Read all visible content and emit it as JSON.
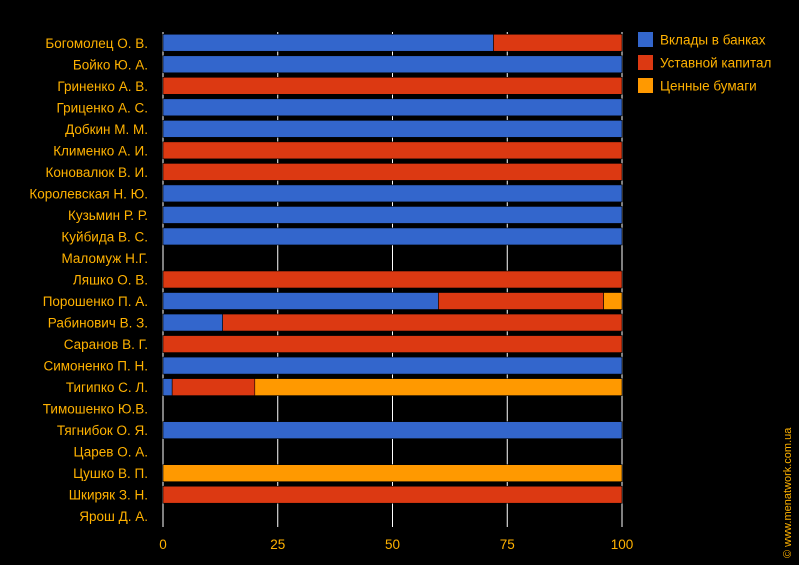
{
  "colors": {
    "background": "#000000",
    "text": "#FFB200",
    "gridline": "#ffffff"
  },
  "watermark": "© www.menatwork.com.ua",
  "chart_data": {
    "type": "bar",
    "orientation": "horizontal",
    "stacked": true,
    "xlim": [
      0,
      100
    ],
    "xticks": [
      0,
      25,
      50,
      75,
      100
    ],
    "grid": true,
    "legend_position": "top-right",
    "categories": [
      "Богомолец О. В.",
      "Бойко Ю. А.",
      "Гриненко А. В.",
      "Гриценко А. С.",
      "Добкин М. М.",
      "Клименко А. И.",
      "Коновалюк В. И.",
      "Королевская Н. Ю.",
      "Кузьмин Р. Р.",
      "Куйбида В. С.",
      "Маломуж Н.Г.",
      "Ляшко О. В.",
      "Порошенко П. А.",
      "Рабинович В. З.",
      "Саранов В. Г.",
      "Симоненко П. Н.",
      "Тигипко С. Л.",
      "Тимошенко Ю.В.",
      "Тягнибок О. Я.",
      "Царев О. А.",
      "Цушко В. П.",
      "Шкиряк З. Н.",
      "Ярош Д. А."
    ],
    "series": [
      {
        "name": "Вклады в банках",
        "color": "#3366CC",
        "values": [
          72,
          100,
          0,
          100,
          100,
          0,
          0,
          100,
          100,
          100,
          0,
          0,
          60,
          13,
          0,
          100,
          2,
          0,
          100,
          0,
          0,
          0,
          0
        ]
      },
      {
        "name": "Уставной капитал",
        "color": "#DC3912",
        "values": [
          28,
          0,
          100,
          0,
          0,
          100,
          100,
          0,
          0,
          0,
          0,
          100,
          36,
          87,
          100,
          0,
          18,
          0,
          0,
          0,
          0,
          100,
          0
        ]
      },
      {
        "name": "Ценные бумаги",
        "color": "#FF9900",
        "values": [
          0,
          0,
          0,
          0,
          0,
          0,
          0,
          0,
          0,
          0,
          0,
          0,
          4,
          0,
          0,
          0,
          80,
          0,
          0,
          0,
          100,
          0,
          0
        ]
      }
    ]
  }
}
